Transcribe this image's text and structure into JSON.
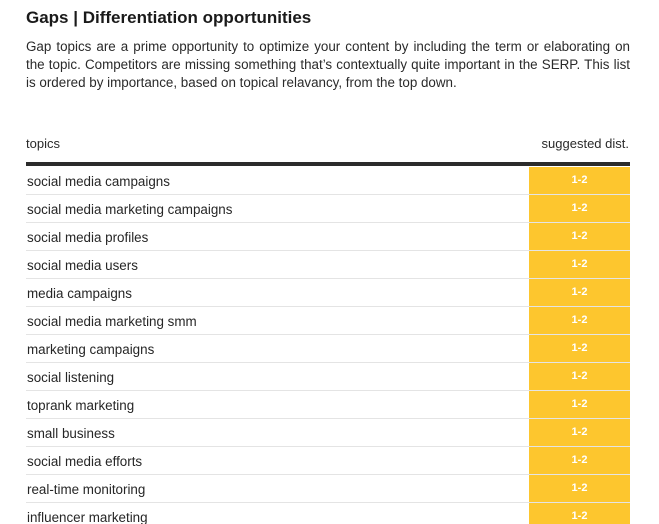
{
  "section": {
    "title": "Gaps | Differentiation opportunities",
    "description": "Gap topics are a prime opportunity to optimize your content by including the term or elaborating on the topic. Competitors are missing something that’s contextually quite important in the SERP. This list is ordered by importance, based on topical relavancy, from the top down."
  },
  "table": {
    "columns": {
      "topic": "topics",
      "dist": "suggested dist."
    },
    "rows": [
      {
        "topic": "social media campaigns",
        "dist": "1-2"
      },
      {
        "topic": "social media marketing campaigns",
        "dist": "1-2"
      },
      {
        "topic": "social media profiles",
        "dist": "1-2"
      },
      {
        "topic": "social media users",
        "dist": "1-2"
      },
      {
        "topic": "media campaigns",
        "dist": "1-2"
      },
      {
        "topic": "social media marketing smm",
        "dist": "1-2"
      },
      {
        "topic": "marketing campaigns",
        "dist": "1-2"
      },
      {
        "topic": "social listening",
        "dist": "1-2"
      },
      {
        "topic": "toprank marketing",
        "dist": "1-2"
      },
      {
        "topic": "small business",
        "dist": "1-2"
      },
      {
        "topic": "social media efforts",
        "dist": "1-2"
      },
      {
        "topic": "real-time monitoring",
        "dist": "1-2"
      },
      {
        "topic": "influencer marketing",
        "dist": "1-2"
      }
    ]
  },
  "colors": {
    "badge": "#fdc62e",
    "rule": "#2b2b2b"
  }
}
